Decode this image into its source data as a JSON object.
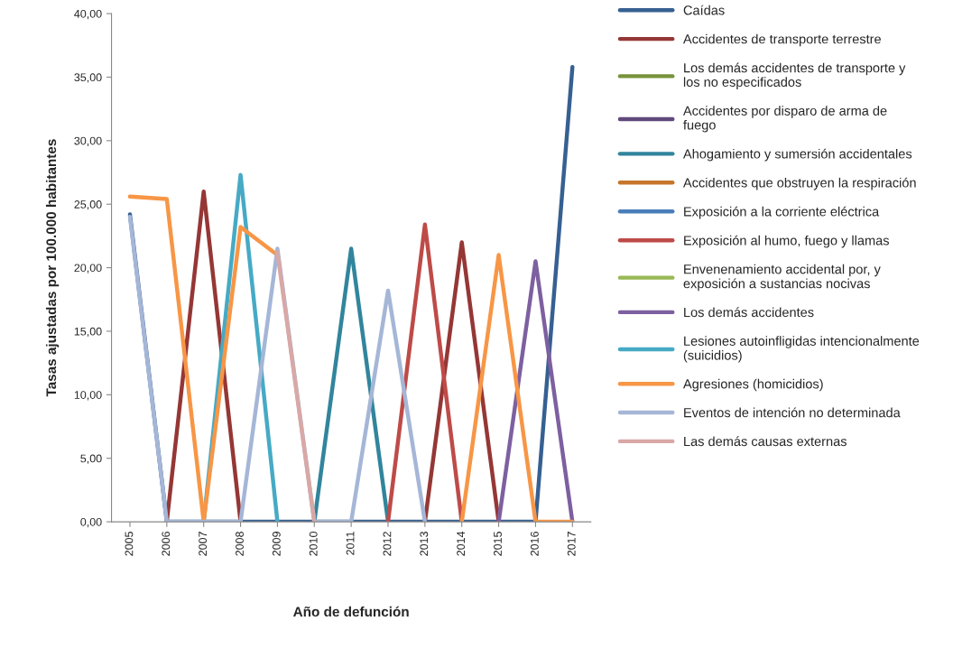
{
  "chart_data": {
    "type": "line",
    "xlabel": "Año de defunción",
    "ylabel": "Tasas ajustadas por 100.000 habitantes",
    "categories": [
      "2005",
      "2006",
      "2007",
      "2008",
      "2009",
      "2010",
      "2011",
      "2012",
      "2013",
      "2014",
      "2015",
      "2016",
      "2017"
    ],
    "ylim": [
      0,
      40
    ],
    "yticks": [
      {
        "value": 0,
        "label": "0,00"
      },
      {
        "value": 5,
        "label": "5,00"
      },
      {
        "value": 10,
        "label": "10,00"
      },
      {
        "value": 15,
        "label": "15,00"
      },
      {
        "value": 20,
        "label": "20,00"
      },
      {
        "value": 25,
        "label": "25,00"
      },
      {
        "value": 30,
        "label": "30,00"
      },
      {
        "value": 35,
        "label": "35,00"
      },
      {
        "value": 40,
        "label": "40,00"
      }
    ],
    "grid": false,
    "legend": "right",
    "marker": "none",
    "line_style": "solid",
    "series": [
      {
        "name": "Caídas",
        "color": "#376092",
        "values": [
          24.2,
          0,
          0,
          0,
          0,
          0,
          0,
          0,
          0,
          0,
          0,
          0,
          35.8
        ]
      },
      {
        "name": "Accidentes de transporte terrestre",
        "color": "#953735",
        "values": [
          null,
          0,
          26.0,
          0,
          null,
          null,
          null,
          null,
          0,
          22.0,
          0,
          null,
          null
        ]
      },
      {
        "name": "Los demás accidentes de transporte y\nlos no especificados",
        "color": "#77933c",
        "values": [
          null,
          null,
          null,
          null,
          null,
          null,
          null,
          null,
          null,
          null,
          null,
          null,
          null
        ]
      },
      {
        "name": "Accidentes por disparo de arma de\nfuego",
        "color": "#604a7b",
        "values": [
          null,
          null,
          null,
          null,
          null,
          null,
          null,
          null,
          null,
          null,
          null,
          null,
          null
        ]
      },
      {
        "name": "Ahogamiento y sumersión accidentales",
        "color": "#31859c",
        "values": [
          null,
          null,
          null,
          null,
          null,
          0,
          21.5,
          0,
          null,
          null,
          null,
          null,
          null
        ]
      },
      {
        "name": "Accidentes que obstruyen la respiración",
        "color": "#c6762b",
        "values": [
          null,
          null,
          null,
          null,
          null,
          null,
          null,
          null,
          null,
          null,
          null,
          null,
          null
        ]
      },
      {
        "name": "Exposición a la corriente eléctrica",
        "color": "#4a7ebb",
        "values": [
          null,
          null,
          null,
          null,
          null,
          null,
          null,
          null,
          null,
          null,
          null,
          null,
          null
        ]
      },
      {
        "name": "Exposición al humo, fuego y llamas",
        "color": "#be4b48",
        "values": [
          null,
          null,
          null,
          null,
          null,
          null,
          null,
          0,
          23.4,
          0,
          null,
          null,
          null
        ]
      },
      {
        "name": "Envenenamiento accidental por, y\nexposición a sustancias nocivas",
        "color": "#98b954",
        "values": [
          null,
          null,
          null,
          null,
          null,
          null,
          null,
          null,
          null,
          null,
          null,
          null,
          null
        ]
      },
      {
        "name": "Los demás accidentes",
        "color": "#7d60a0",
        "values": [
          null,
          null,
          null,
          null,
          null,
          null,
          null,
          null,
          null,
          null,
          0,
          20.5,
          0
        ]
      },
      {
        "name": "Lesiones autoinfligidas intencionalmente\n(suicidios)",
        "color": "#46aac5",
        "values": [
          null,
          null,
          0,
          27.3,
          0,
          null,
          null,
          null,
          null,
          null,
          null,
          null,
          null
        ]
      },
      {
        "name": "Agresiones (homicidios)",
        "color": "#f79646",
        "values": [
          25.6,
          25.4,
          0,
          23.2,
          21.0,
          null,
          null,
          null,
          null,
          0,
          21.0,
          0,
          0
        ]
      },
      {
        "name": "Eventos de intención no determinada",
        "color": "#a5b6d7",
        "values": [
          24.0,
          0,
          0,
          0,
          21.5,
          0,
          0,
          18.2,
          0,
          null,
          null,
          null,
          null
        ]
      },
      {
        "name": "Las demás causas externas",
        "color": "#d9a8a6",
        "values": [
          null,
          null,
          null,
          null,
          21.2,
          0,
          null,
          null,
          null,
          null,
          null,
          null,
          null
        ]
      }
    ]
  }
}
